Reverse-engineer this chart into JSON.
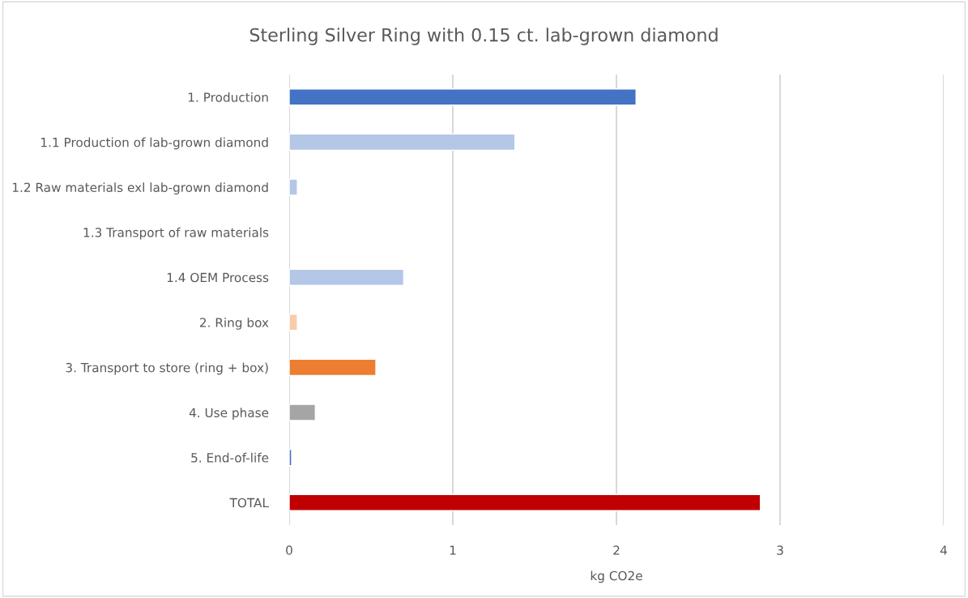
{
  "chart_data": {
    "type": "bar",
    "orientation": "horizontal",
    "title": "Sterling Silver Ring with 0.15 ct. lab-grown diamond",
    "xlabel": "kg CO2e",
    "categories": [
      "1. Production",
      "1.1 Production of lab-grown diamond",
      "1.2 Raw materials exl lab-grown diamond",
      "1.3 Transport of raw materials",
      "1.4 OEM Process",
      "2. Ring box",
      "3. Transport to store (ring + box)",
      "4. Use phase",
      "5. End-of-life",
      "TOTAL"
    ],
    "values": [
      2.12,
      1.38,
      0.05,
      null,
      0.7,
      0.05,
      0.53,
      0.16,
      0.015,
      2.88
    ],
    "colors": [
      "#4472c4",
      "#b4c7e7",
      "#b4c7e7",
      "#b4c7e7",
      "#b4c7e7",
      "#f8cbad",
      "#ed7d31",
      "#a5a5a5",
      "#4472c4",
      "#c00000"
    ],
    "xlim": [
      0,
      4
    ],
    "xticks": [
      0,
      1,
      2,
      3,
      4
    ],
    "grid": "x",
    "legend": false
  }
}
